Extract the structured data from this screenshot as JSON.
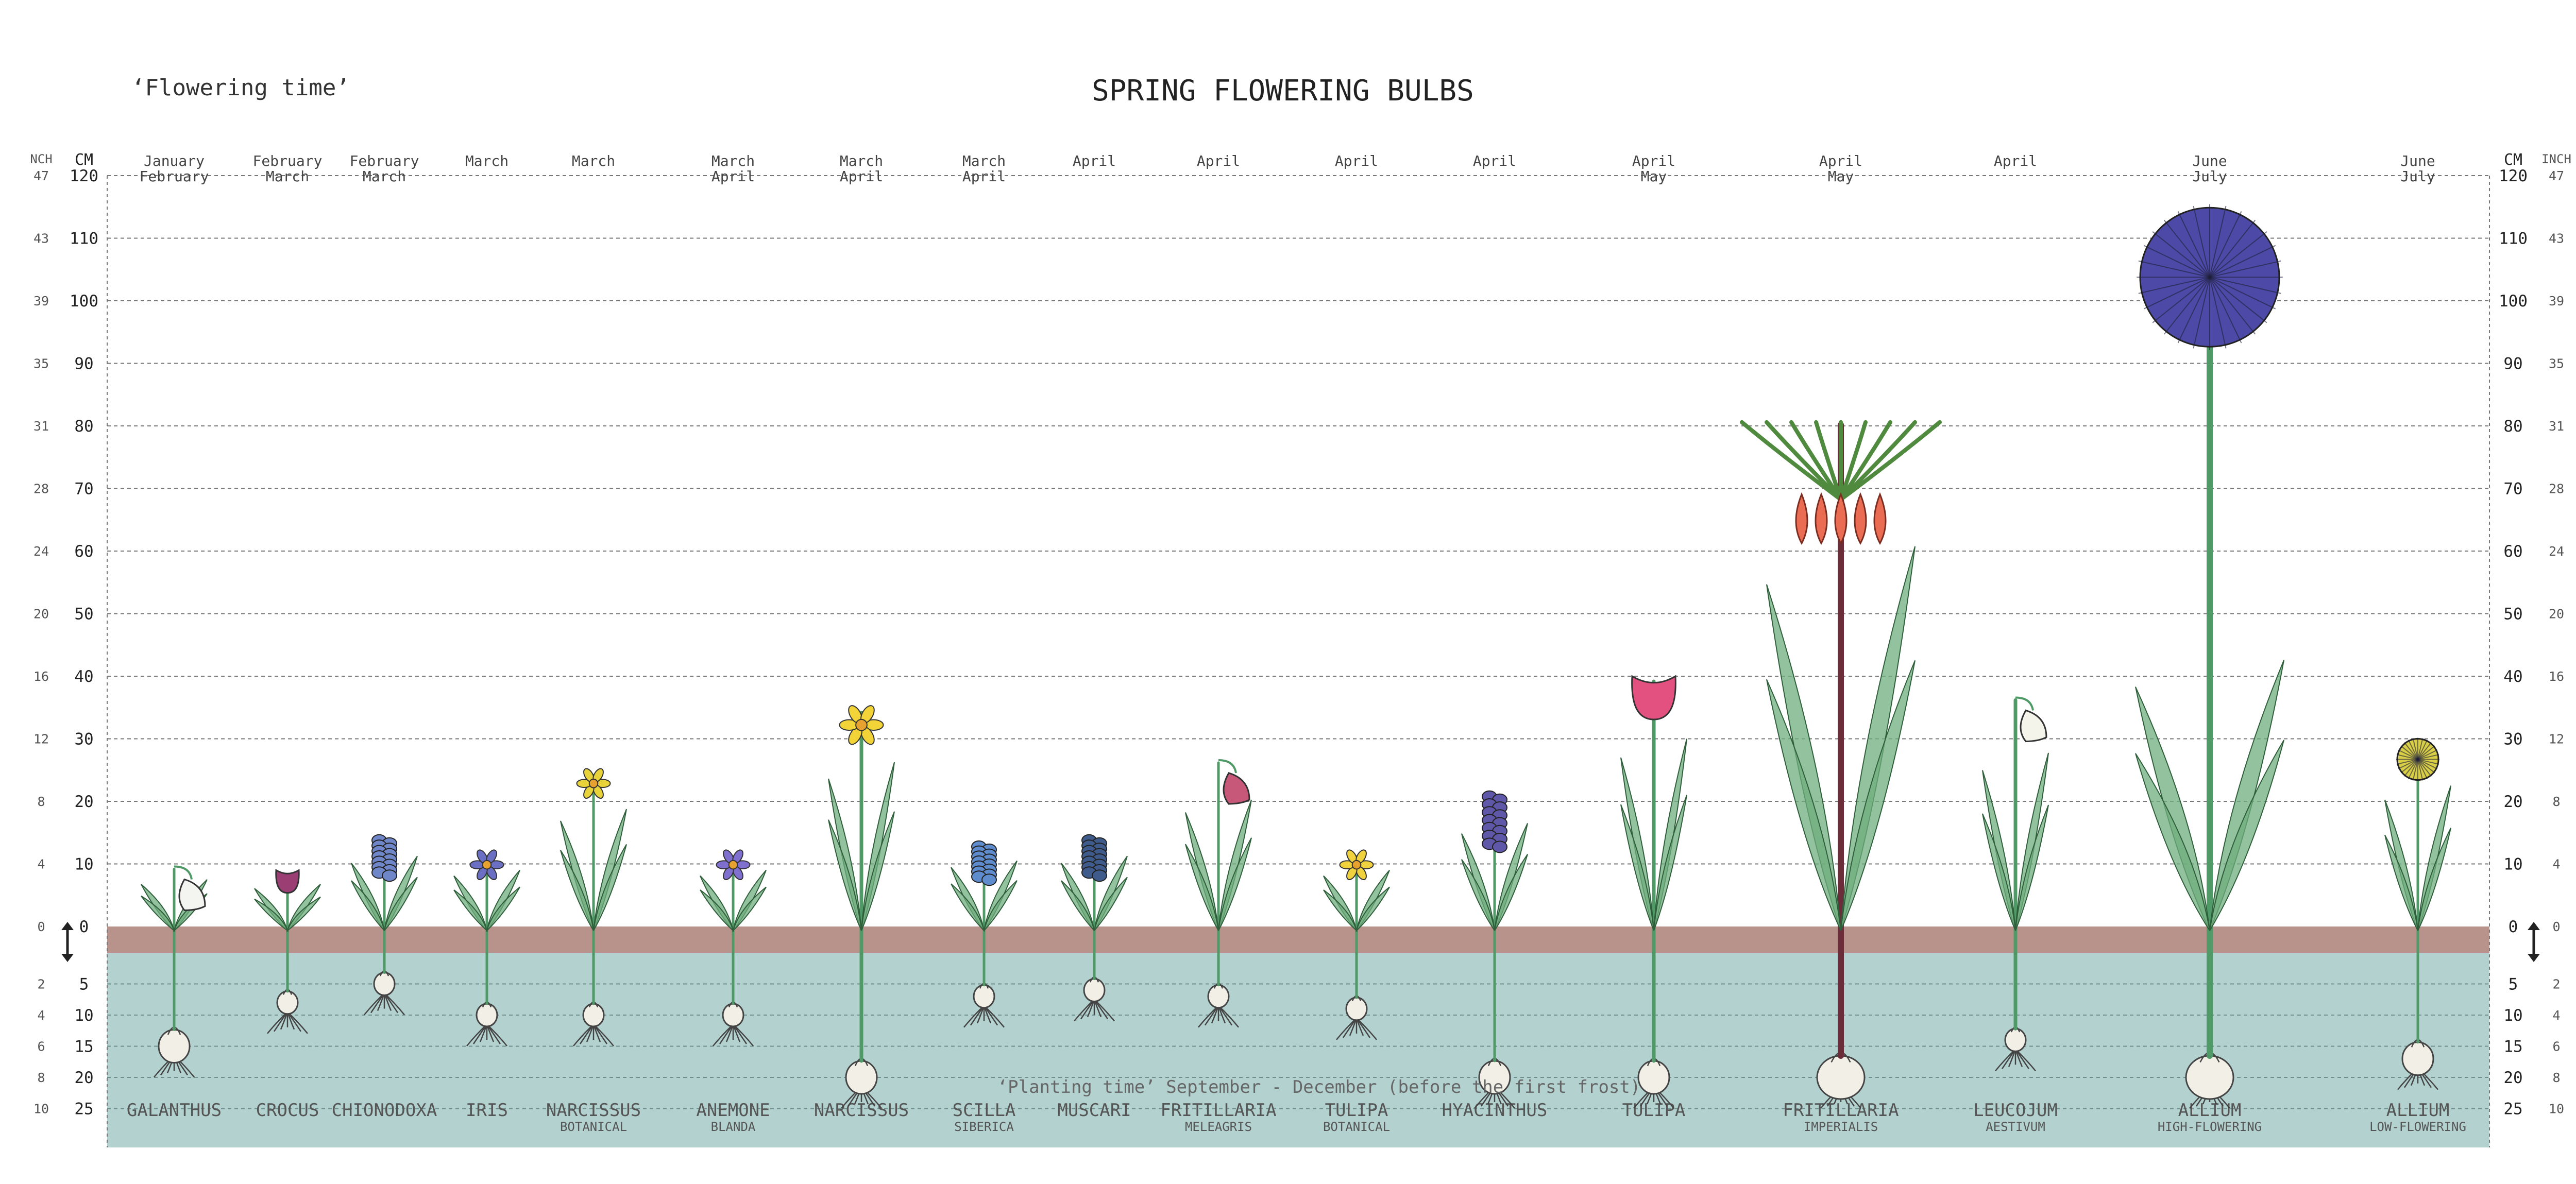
{
  "header": {
    "title": "SPRING FLOWERING BULBS",
    "flowering_label": "‘Flowering time’",
    "planting_label": "‘Planting time’ September - December (before the first frost)"
  },
  "axes": {
    "left_inch_header": "NCH",
    "left_cm_header": "CM",
    "right_cm_header": "CM",
    "right_inch_header": "INCH",
    "above": [
      {
        "cm": "120",
        "inch": "47"
      },
      {
        "cm": "110",
        "inch": "43"
      },
      {
        "cm": "100",
        "inch": "39"
      },
      {
        "cm": "90",
        "inch": "35"
      },
      {
        "cm": "80",
        "inch": "31"
      },
      {
        "cm": "70",
        "inch": "28"
      },
      {
        "cm": "60",
        "inch": "24"
      },
      {
        "cm": "50",
        "inch": "20"
      },
      {
        "cm": "40",
        "inch": "16"
      },
      {
        "cm": "30",
        "inch": "12"
      },
      {
        "cm": "20",
        "inch": "8"
      },
      {
        "cm": "10",
        "inch": "4"
      },
      {
        "cm": "0",
        "inch": "0"
      }
    ],
    "below": [
      {
        "cm": "5",
        "inch": "2"
      },
      {
        "cm": "10",
        "inch": "4"
      },
      {
        "cm": "15",
        "inch": "6"
      },
      {
        "cm": "20",
        "inch": "8"
      },
      {
        "cm": "25",
        "inch": "10"
      }
    ]
  },
  "colors": {
    "soil": "#b8938c",
    "underground": "#b2d1cf",
    "grid": "#777777",
    "stem": "#4f9a66",
    "leaf": "#6fae7e"
  },
  "plants": [
    {
      "name": "GALANTHUS",
      "sub": "",
      "months": [
        "January",
        "February"
      ],
      "height_cm": 10,
      "depth_cm": 15,
      "flower": "#f4f4f0",
      "shape": "bell"
    },
    {
      "name": "CROCUS",
      "sub": "",
      "months": [
        "February",
        "March"
      ],
      "height_cm": 9,
      "depth_cm": 8,
      "flower": "#9b3e74",
      "shape": "cup"
    },
    {
      "name": "CHIONODOXA",
      "sub": "",
      "months": [
        "February",
        "March"
      ],
      "height_cm": 15,
      "depth_cm": 5,
      "flower": "#6f86c9",
      "shape": "spike"
    },
    {
      "name": "IRIS",
      "sub": "",
      "months": [
        "March"
      ],
      "height_cm": 12,
      "depth_cm": 10,
      "flower": "#6a6fc4",
      "shape": "star"
    },
    {
      "name": "NARCISSUS",
      "sub": "BOTANICAL",
      "months": [
        "March"
      ],
      "height_cm": 25,
      "depth_cm": 10,
      "flower": "#e8d43a",
      "shape": "star"
    },
    {
      "name": "ANEMONE",
      "sub": "BLANDA",
      "months": [
        "March",
        "April"
      ],
      "height_cm": 12,
      "depth_cm": 10,
      "flower": "#7f6fcf",
      "shape": "star"
    },
    {
      "name": "NARCISSUS",
      "sub": "",
      "months": [
        "March",
        "April"
      ],
      "height_cm": 35,
      "depth_cm": 20,
      "flower": "#f2d338",
      "shape": "star"
    },
    {
      "name": "SCILLA",
      "sub": "SIBERICA",
      "months": [
        "March",
        "April"
      ],
      "height_cm": 14,
      "depth_cm": 7,
      "flower": "#5e8ccc",
      "shape": "spike"
    },
    {
      "name": "MUSCARI",
      "sub": "",
      "months": [
        "April"
      ],
      "height_cm": 15,
      "depth_cm": 6,
      "flower": "#3e5b8c",
      "shape": "spike"
    },
    {
      "name": "FRITILLARIA",
      "sub": "MELEAGRIS",
      "months": [
        "April"
      ],
      "height_cm": 27,
      "depth_cm": 7,
      "flower": "#c7587a",
      "shape": "bell"
    },
    {
      "name": "TULIPA",
      "sub": "BOTANICAL",
      "months": [
        "April"
      ],
      "height_cm": 12,
      "depth_cm": 9,
      "flower": "#efd23d",
      "shape": "star"
    },
    {
      "name": "HYACINTHUS",
      "sub": "",
      "months": [
        "April"
      ],
      "height_cm": 22,
      "depth_cm": 20,
      "flower": "#5f58a8",
      "shape": "spike"
    },
    {
      "name": "TULIPA",
      "sub": "",
      "months": [
        "April",
        "May"
      ],
      "height_cm": 40,
      "depth_cm": 20,
      "flower": "#e2517f",
      "shape": "cup"
    },
    {
      "name": "FRITILLARIA",
      "sub": "IMPERIALIS",
      "months": [
        "April",
        "May"
      ],
      "height_cm": 81,
      "depth_cm": 20,
      "flower": "#ea6c52",
      "shape": "crown"
    },
    {
      "name": "LEUCOJUM",
      "sub": "AESTIVUM",
      "months": [
        "April"
      ],
      "height_cm": 37,
      "depth_cm": 14,
      "flower": "#f4f4ea",
      "shape": "bell"
    },
    {
      "name": "ALLIUM",
      "sub": "HIGH-FLOWERING",
      "months": [
        "June",
        "July"
      ],
      "height_cm": 112,
      "depth_cm": 20,
      "flower": "#4c4aa6",
      "shape": "globe"
    },
    {
      "name": "ALLIUM",
      "sub": "LOW-FLOWERING",
      "months": [
        "June",
        "July"
      ],
      "height_cm": 30,
      "depth_cm": 17,
      "flower": "#d9cf47",
      "shape": "globe"
    }
  ]
}
